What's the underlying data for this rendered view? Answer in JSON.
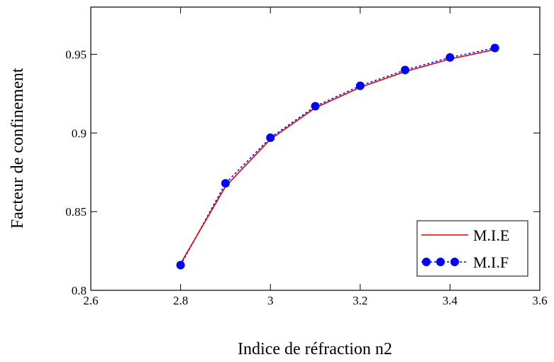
{
  "chart_data": {
    "type": "line",
    "xlabel": "Indice de réfraction n2",
    "ylabel": "Facteur de confinement",
    "xlim": [
      2.6,
      3.6
    ],
    "ylim": [
      0.8,
      0.98
    ],
    "xticks": [
      "2.6",
      "2.8",
      "3",
      "3.2",
      "3.4",
      "3.6"
    ],
    "yticks": [
      "0.8",
      "0.85",
      "0.9",
      "0.95"
    ],
    "grid": false,
    "legend_position": "bottom-right",
    "series": [
      {
        "name": "M.I.E",
        "style": "solid",
        "color": "#e00000",
        "x": [
          2.8,
          2.9,
          3.0,
          3.1,
          3.2,
          3.3,
          3.4,
          3.5
        ],
        "y": [
          0.817,
          0.866,
          0.896,
          0.916,
          0.929,
          0.939,
          0.947,
          0.953
        ]
      },
      {
        "name": "M.I.F",
        "style": "dotted-markers",
        "color": "#0000ff",
        "x": [
          2.8,
          2.9,
          3.0,
          3.1,
          3.2,
          3.3,
          3.4,
          3.5
        ],
        "y": [
          0.816,
          0.868,
          0.897,
          0.917,
          0.93,
          0.94,
          0.948,
          0.954
        ]
      }
    ]
  }
}
